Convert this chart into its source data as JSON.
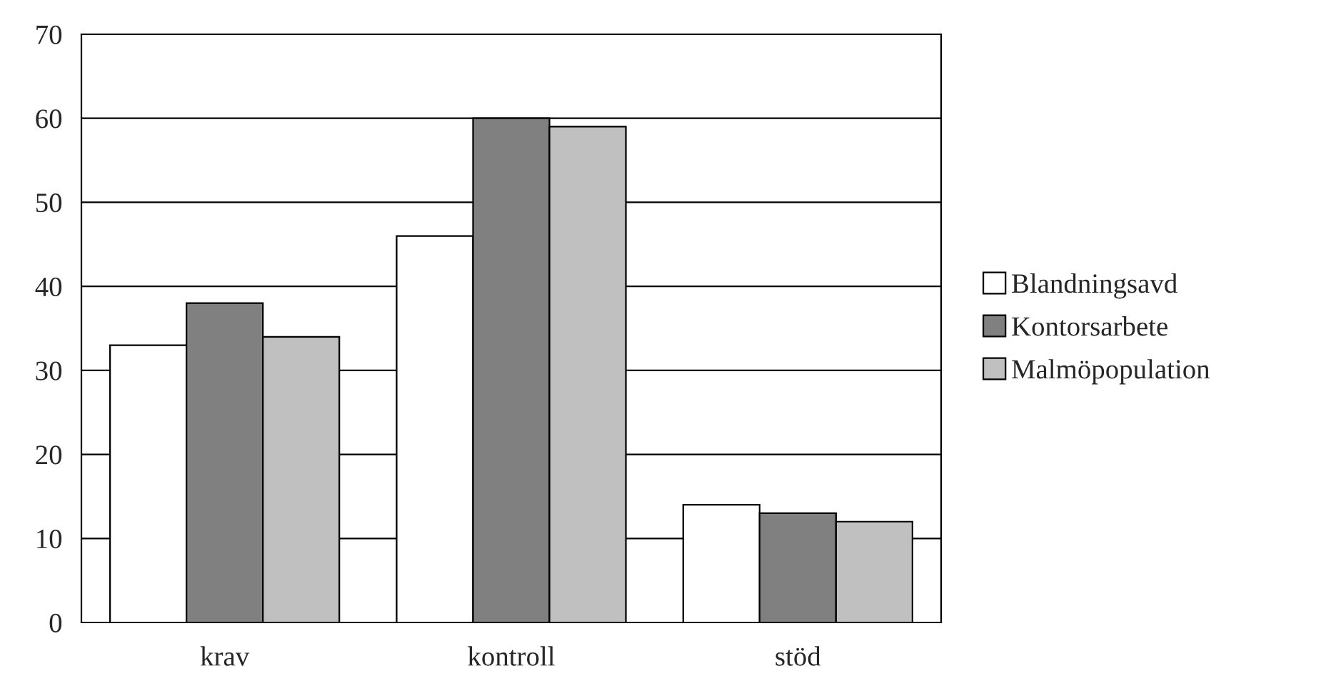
{
  "chart_data": {
    "type": "bar",
    "categories": [
      "krav",
      "kontroll",
      "stöd"
    ],
    "series": [
      {
        "name": "Blandningsavd",
        "color": "#ffffff",
        "values": [
          33,
          46,
          14
        ]
      },
      {
        "name": "Kontorsarbete",
        "color": "#808080",
        "values": [
          38,
          60,
          13
        ]
      },
      {
        "name": "Malmöpopulation",
        "color": "#c0c0c0",
        "values": [
          34,
          59,
          12
        ]
      }
    ],
    "ylim": [
      0,
      70
    ],
    "yticks": [
      0,
      10,
      20,
      30,
      40,
      50,
      60,
      70
    ],
    "grid": "y",
    "legend": "right"
  }
}
